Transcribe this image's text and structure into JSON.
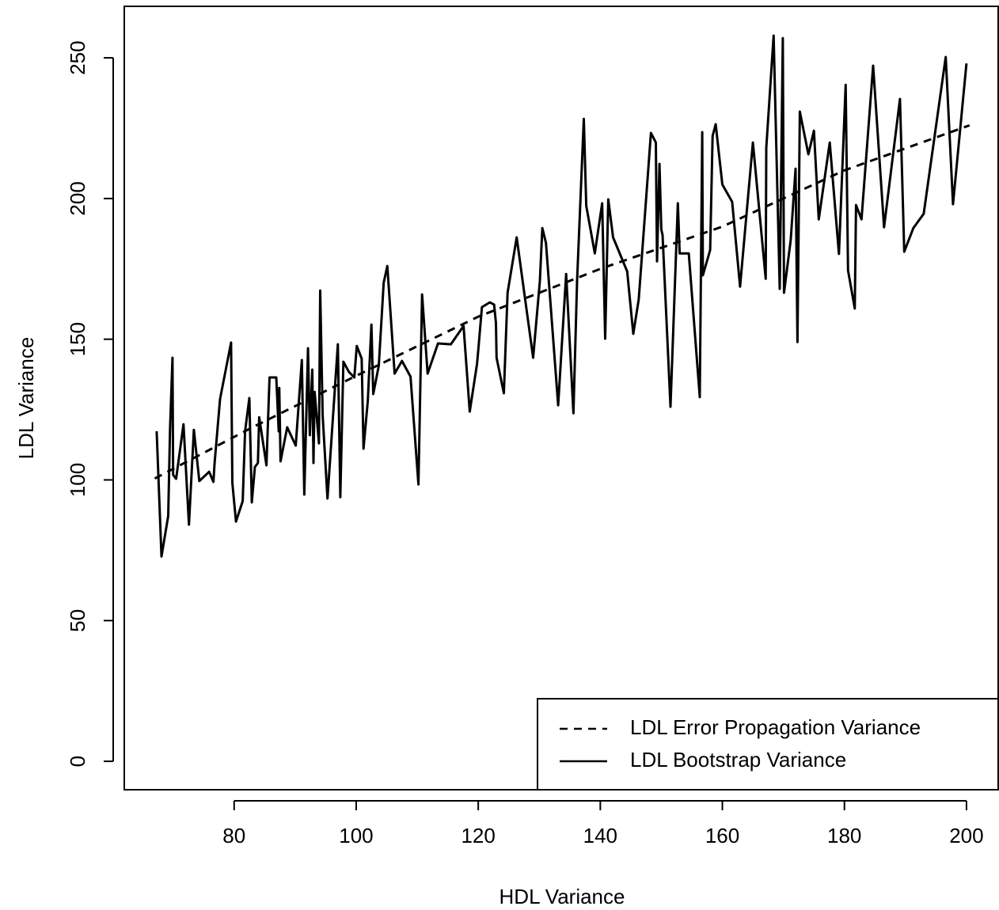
{
  "chart_data": {
    "type": "line",
    "x_label": "HDL Variance",
    "y_label": "LDL Variance",
    "xlim": [
      62,
      205.2
    ],
    "ylim": [
      -10.1,
      268.3
    ],
    "xticks": [
      80,
      100,
      120,
      140,
      160,
      180,
      200
    ],
    "yticks": [
      0,
      50,
      100,
      150,
      200,
      250
    ],
    "legend": "bottomright",
    "series": [
      {
        "name": "LDL Error Propagation Variance",
        "color": "#000000",
        "dash": true,
        "x": [
          67,
          83,
          100,
          120,
          140,
          160,
          180,
          200.5
        ],
        "values": [
          100.5,
          118.7,
          137,
          158,
          175,
          190,
          210,
          226
        ]
      },
      {
        "name": "LDL Bootstrap Variance",
        "color": "#000000",
        "dash": false,
        "x": [
          67.3,
          68.1,
          69.2,
          69.5,
          69.9,
          70.0,
          70.5,
          71.7,
          72.6,
          73.4,
          74.3,
          75.9,
          76.6,
          76.8,
          77.7,
          79.5,
          79.7,
          80.3,
          81.4,
          81.8,
          82.5,
          82.9,
          83.4,
          83.9,
          84.1,
          85.3,
          85.8,
          86.9,
          87.3,
          87.4,
          87.6,
          88.7,
          90.1,
          91.1,
          91.5,
          92.1,
          92.4,
          92.8,
          93.0,
          93.2,
          93.9,
          94.1,
          94.5,
          95.3,
          97.0,
          97.4,
          97.9,
          98.8,
          99.7,
          100.1,
          100.9,
          101.2,
          101.9,
          102.5,
          102.8,
          103.7,
          104.5,
          105.1,
          106.3,
          107.5,
          108.9,
          110.2,
          110.8,
          111.7,
          113.4,
          115.5,
          117.6,
          118.6,
          119.8,
          120.0,
          120.6,
          121.9,
          122.6,
          122.9,
          123.0,
          124.2,
          124.8,
          126.3,
          129.0,
          130.1,
          130.5,
          131.1,
          133.1,
          134.4,
          135.6,
          136.2,
          137.3,
          137.7,
          139.1,
          140.3,
          140.8,
          141.3,
          142.1,
          144.4,
          145.4,
          146.3,
          148.3,
          149.1,
          149.3,
          149.7,
          150.0,
          150.2,
          151.5,
          152.7,
          153.0,
          154.5,
          156.3,
          156.7,
          156.8,
          158.0,
          158.4,
          158.9,
          160.0,
          161.6,
          162.9,
          165.0,
          167.1,
          167.2,
          168.4,
          169.4,
          169.9,
          170.1,
          171.2,
          172.0,
          172.3,
          172.7,
          174.1,
          175.0,
          175.8,
          177.6,
          179.1,
          180.2,
          180.6,
          181.7,
          181.9,
          182.8,
          184.7,
          186.5,
          189.1,
          189.8,
          191.3,
          193.0,
          196.6,
          197.8,
          200.0
        ],
        "values": [
          117.3,
          72.8,
          87.2,
          118,
          143.4,
          101.8,
          100.4,
          119.8,
          84.1,
          117.8,
          99.6,
          102.9,
          99.3,
          106,
          128.8,
          148.8,
          99,
          85.2,
          92.5,
          117.3,
          129.1,
          92,
          104.6,
          106,
          122.3,
          105.2,
          136.4,
          136.4,
          117.3,
          132.7,
          106.6,
          118.7,
          112.2,
          142.6,
          94.8,
          146.8,
          115.9,
          139.2,
          106,
          131.3,
          113,
          167.3,
          122.9,
          93.4,
          148.2,
          93.9,
          142,
          138.4,
          136.4,
          147.6,
          143.1,
          111.1,
          128,
          155.2,
          130.5,
          140.6,
          170.1,
          176,
          137.8,
          142.3,
          136.7,
          98.4,
          165.9,
          137.8,
          148.5,
          148.2,
          154.7,
          124.3,
          141.2,
          146.2,
          161.4,
          163.1,
          162.3,
          155.8,
          143.4,
          130.8,
          166.5,
          186.2,
          143.4,
          170.7,
          189.5,
          184.2,
          126.5,
          173.2,
          123.7,
          170.7,
          228.3,
          197.4,
          180.5,
          198.3,
          150.2,
          199.7,
          186.2,
          174.1,
          151.9,
          164.2,
          223.3,
          219.9,
          177.7,
          212.3,
          189,
          187,
          126,
          198.3,
          180.5,
          180.5,
          129.4,
          223.6,
          172.7,
          181.7,
          222.2,
          226.4,
          205,
          198.8,
          168.7,
          219.9,
          171.5,
          218,
          257.9,
          167.9,
          257,
          166.5,
          185.3,
          210.6,
          149,
          230.9,
          215.7,
          224.1,
          192.6,
          219.9,
          180.3,
          240.4,
          174.4,
          160.9,
          197.7,
          192.6,
          247.2,
          189.8,
          235.4,
          181.1,
          189.5,
          194.6,
          250.3,
          198,
          248
        ]
      }
    ]
  }
}
